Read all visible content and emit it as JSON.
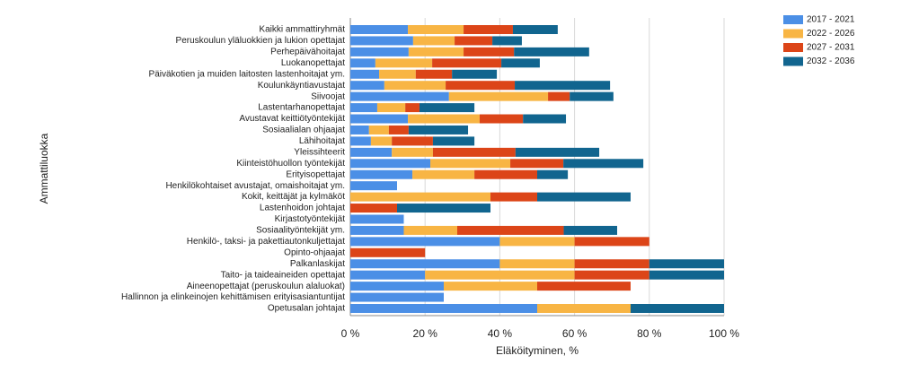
{
  "chart_data": {
    "type": "bar",
    "orientation": "horizontal",
    "stacked": true,
    "x_label": "Eläköityminen, %",
    "y_label": "Ammattiluokka",
    "categories": [
      "Kaikki ammattiryhmät",
      "Peruskoulun yläluokkien ja lukion opettajat",
      "Perhepäivähoitajat",
      "Luokanopettajat",
      "Päiväkotien ja muiden laitosten lastenhoitajat ym.",
      "Koulunkäyntiavustajat",
      "Siivoojat",
      "Lastentarhanopettajat",
      "Avustavat keittiötyöntekijät",
      "Sosiaalialan ohjaajat",
      "Lähihoitajat",
      "Yleissihteerit",
      "Kiinteistöhuollon työntekijät",
      "Erityisopettajat",
      "Henkilökohtaiset avustajat, omaishoitajat ym.",
      "Kokit, keittäjät ja kylmäköt",
      "Lastenhoidon johtajat",
      "Kirjastotyöntekijät",
      "Sosiaalityöntekijät ym.",
      "Henkilö-, taksi- ja pakettiautonkuljettajat",
      "Opinto-ohjaajat",
      "Palkanlaskijat",
      "Taito- ja taideaineiden opettajat",
      "Aineenopettajat (peruskoulun alaluokat)",
      "Hallinnon ja elinkeinojen kehittämisen erityisasiantuntijat",
      "Opetusalan johtajat"
    ],
    "series": [
      {
        "name": "2017 - 2021",
        "color": "#4b8fe6",
        "values": [
          15.4,
          16.8,
          15.6,
          6.7,
          7.7,
          9.1,
          26.4,
          7.2,
          15.4,
          5.0,
          5.5,
          11.1,
          21.4,
          16.6,
          12.5,
          0,
          0,
          14.3,
          14.3,
          40,
          0,
          40,
          20,
          25,
          25,
          50
        ]
      },
      {
        "name": "2022 - 2026",
        "color": "#f8b544",
        "values": [
          14.9,
          11.1,
          14.7,
          15.2,
          9.8,
          16.4,
          26.5,
          7.5,
          19.2,
          5.3,
          5.6,
          11.0,
          21.4,
          16.6,
          0,
          37.5,
          0,
          0,
          14.3,
          20,
          0,
          20,
          40,
          25,
          0,
          25
        ]
      },
      {
        "name": "2027 - 2031",
        "color": "#dc4518",
        "values": [
          13.2,
          10.1,
          13.5,
          18.5,
          9.7,
          18.5,
          5.8,
          3.8,
          11.6,
          5.3,
          11.0,
          22.1,
          14.2,
          16.8,
          0,
          12.5,
          12.5,
          0,
          28.5,
          20,
          20,
          20,
          20,
          25,
          0,
          0
        ]
      },
      {
        "name": "2032 - 2036",
        "color": "#11658f",
        "values": [
          12.0,
          7.9,
          20.1,
          10.3,
          12.0,
          25.5,
          11.7,
          14.7,
          11.5,
          15.9,
          11.1,
          22.4,
          21.4,
          8.2,
          0,
          25.0,
          25.0,
          0,
          14.3,
          0,
          0,
          20,
          20,
          0,
          0,
          25
        ]
      }
    ],
    "xlim": [
      0,
      100
    ],
    "xticks": [
      {
        "value": 0,
        "label": "0 %"
      },
      {
        "value": 20,
        "label": "20 %"
      },
      {
        "value": 40,
        "label": "40 %"
      },
      {
        "value": 60,
        "label": "60 %"
      },
      {
        "value": 80,
        "label": "80 %"
      },
      {
        "value": 100,
        "label": "100 %"
      }
    ],
    "grid": true,
    "legend": "top-right"
  }
}
